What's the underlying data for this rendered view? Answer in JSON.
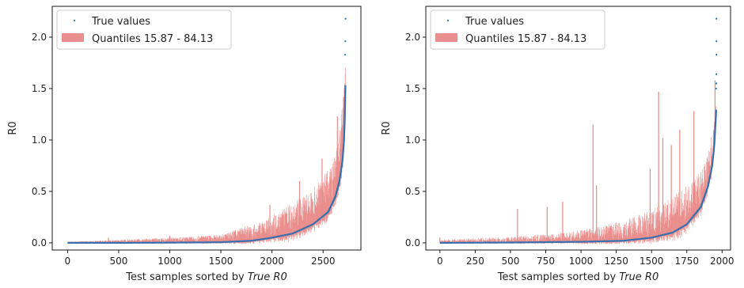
{
  "chart_data": [
    {
      "type": "scatter",
      "xlabel_prefix": "Test samples sorted by ",
      "xlabel_italic": "True R0",
      "ylabel": "R0",
      "xlim": [
        -150,
        2870
      ],
      "ylim": [
        -0.07,
        2.3
      ],
      "xticks": [
        0,
        500,
        1000,
        1500,
        2000,
        2500
      ],
      "yticks": [
        0.0,
        0.5,
        1.0,
        1.5,
        2.0
      ],
      "legend": {
        "placement": "top-left",
        "entries": [
          {
            "label": "True values",
            "kind": "points",
            "color": "#1f77b4"
          },
          {
            "label": "Quantiles 15.87 - 84.13",
            "kind": "band",
            "color": "#e88a88"
          }
        ]
      },
      "n_samples": 2720,
      "true_curve": [
        [
          0,
          0.0
        ],
        [
          500,
          0.0
        ],
        [
          1000,
          0.002
        ],
        [
          1500,
          0.006
        ],
        [
          1800,
          0.02
        ],
        [
          2000,
          0.05
        ],
        [
          2200,
          0.09
        ],
        [
          2400,
          0.18
        ],
        [
          2550,
          0.3
        ],
        [
          2620,
          0.45
        ],
        [
          2660,
          0.6
        ],
        [
          2690,
          0.8
        ],
        [
          2705,
          1.0
        ],
        [
          2712,
          1.2
        ],
        [
          2716,
          1.4
        ],
        [
          2719,
          1.6
        ],
        [
          2720,
          1.65
        ]
      ],
      "outliers": [
        [
          2715,
          1.83
        ],
        [
          2718,
          1.96
        ],
        [
          2720,
          2.18
        ]
      ],
      "band_upper_envelope": [
        [
          0,
          0.01
        ],
        [
          500,
          0.03
        ],
        [
          1000,
          0.05
        ],
        [
          1500,
          0.08
        ],
        [
          1700,
          0.15
        ],
        [
          1900,
          0.2
        ],
        [
          2100,
          0.33
        ],
        [
          2300,
          0.45
        ],
        [
          2450,
          0.58
        ],
        [
          2550,
          0.72
        ],
        [
          2620,
          0.85
        ],
        [
          2670,
          1.2
        ],
        [
          2700,
          1.42
        ],
        [
          2720,
          1.74
        ]
      ],
      "band_spikes": [
        [
          400,
          0.05
        ],
        [
          1000,
          0.07
        ],
        [
          1980,
          0.37
        ],
        [
          2270,
          0.6
        ],
        [
          2490,
          0.82
        ],
        [
          2640,
          1.23
        ],
        [
          2700,
          1.42
        ]
      ],
      "colors": {
        "points": "#1f77b4",
        "band": "#e88a88",
        "curve": "#3a6fb0"
      }
    },
    {
      "type": "scatter",
      "xlabel_prefix": "Test samples sorted by ",
      "xlabel_italic": "True R0",
      "ylabel": "R0",
      "xlim": [
        -100,
        2060
      ],
      "ylim": [
        -0.07,
        2.3
      ],
      "xticks": [
        0,
        250,
        500,
        750,
        1000,
        1250,
        1500,
        1750,
        2000
      ],
      "yticks": [
        0.0,
        0.5,
        1.0,
        1.5,
        2.0
      ],
      "legend": {
        "placement": "top-left",
        "entries": [
          {
            "label": "True values",
            "kind": "points",
            "color": "#1f77b4"
          },
          {
            "label": "Quantiles 15.87 - 84.13",
            "kind": "band",
            "color": "#e88a88"
          }
        ]
      },
      "n_samples": 1960,
      "true_curve": [
        [
          0,
          0.0
        ],
        [
          500,
          0.003
        ],
        [
          1000,
          0.01
        ],
        [
          1300,
          0.02
        ],
        [
          1500,
          0.05
        ],
        [
          1650,
          0.1
        ],
        [
          1750,
          0.18
        ],
        [
          1850,
          0.35
        ],
        [
          1900,
          0.55
        ],
        [
          1930,
          0.75
        ],
        [
          1945,
          0.95
        ],
        [
          1955,
          1.2
        ],
        [
          1960,
          1.35
        ]
      ],
      "outliers": [
        [
          1958,
          1.5
        ],
        [
          1959,
          1.55
        ],
        [
          1959,
          1.64
        ],
        [
          1960,
          1.83
        ],
        [
          1960,
          1.96
        ],
        [
          1960,
          2.18
        ]
      ],
      "band_upper_envelope": [
        [
          0,
          0.03
        ],
        [
          500,
          0.06
        ],
        [
          900,
          0.1
        ],
        [
          1100,
          0.15
        ],
        [
          1300,
          0.22
        ],
        [
          1500,
          0.32
        ],
        [
          1650,
          0.45
        ],
        [
          1800,
          0.62
        ],
        [
          1900,
          0.85
        ],
        [
          1960,
          1.35
        ]
      ],
      "band_spikes": [
        [
          0,
          0.05
        ],
        [
          550,
          0.33
        ],
        [
          760,
          0.35
        ],
        [
          870,
          0.4
        ],
        [
          1085,
          1.15
        ],
        [
          1110,
          0.56
        ],
        [
          1490,
          0.72
        ],
        [
          1550,
          1.47
        ],
        [
          1580,
          1.02
        ],
        [
          1640,
          0.95
        ],
        [
          1700,
          1.1
        ],
        [
          1800,
          1.28
        ],
        [
          1950,
          1.58
        ]
      ],
      "colors": {
        "points": "#1f77b4",
        "band": "#e88a88",
        "curve": "#3a6fb0"
      }
    }
  ]
}
